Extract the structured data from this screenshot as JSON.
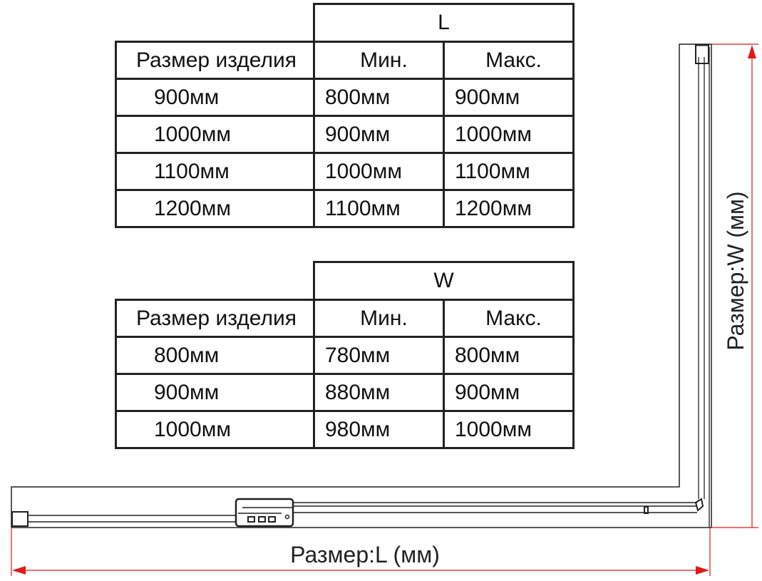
{
  "table_L": {
    "group_header": "L",
    "headers": [
      "Размер изделия",
      "Мин.",
      "Макс."
    ],
    "rows": [
      [
        "900мм",
        "800мм",
        "900мм"
      ],
      [
        "1000мм",
        "900мм",
        "1000мм"
      ],
      [
        "1100мм",
        "1000мм",
        "1100мм"
      ],
      [
        "1200мм",
        "1100мм",
        "1200мм"
      ]
    ]
  },
  "table_W": {
    "group_header": "W",
    "headers": [
      "Размер изделия",
      "Мин.",
      "Макс."
    ],
    "rows": [
      [
        "800мм",
        "780мм",
        "800мм"
      ],
      [
        "900мм",
        "880мм",
        "900мм"
      ],
      [
        "1000мм",
        "980мм",
        "1000мм"
      ]
    ]
  },
  "drawing": {
    "dim_L_label": "Размер:L (мм)",
    "dim_W_label": "Размер:W (мм)",
    "dimension_color": "#e0191b",
    "line_color": "#222222"
  }
}
